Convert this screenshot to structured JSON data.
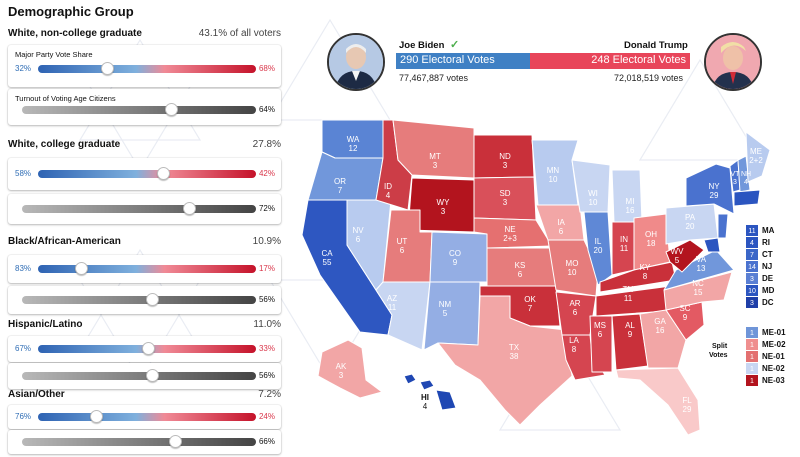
{
  "panel": {
    "title": "Demographic Group",
    "major_party_label": "Major Party Vote Share",
    "turnout_label": "Turnout of Voting Age Citizens",
    "groups": [
      {
        "name": "White, non-college graduate",
        "share": "43.1% of all voters",
        "dem": "32%",
        "rep": "68%",
        "dem_pct": 32,
        "turnout": "64%",
        "turnout_pct": 64
      },
      {
        "name": "White, college graduate",
        "share": "27.8%",
        "dem": "58%",
        "rep": "42%",
        "dem_pct": 58,
        "turnout": "72%",
        "turnout_pct": 72
      },
      {
        "name": "Black/African-American",
        "share": "10.9%",
        "dem": "83%",
        "rep": "17%",
        "dem_pct": 83,
        "turnout": "56%",
        "turnout_pct": 56
      },
      {
        "name": "Hispanic/Latino",
        "share": "11.0%",
        "dem": "67%",
        "rep": "33%",
        "dem_pct": 67,
        "turnout": "56%",
        "turnout_pct": 56
      },
      {
        "name": "Asian/Other",
        "share": "7.2%",
        "dem": "76%",
        "rep": "24%",
        "dem_pct": 76,
        "turnout": "66%",
        "turnout_pct": 66
      }
    ]
  },
  "header": {
    "dem": {
      "name": "Joe Biden",
      "ev_label": "290 Electoral Votes",
      "popular": "77,467,887 votes",
      "ev": 290,
      "color": "#3f80c4"
    },
    "rep": {
      "name": "Donald Trump",
      "ev_label": "248 Electoral Votes",
      "popular": "72,018,519 votes",
      "ev": 248,
      "color": "#e8455a"
    }
  },
  "states": [
    {
      "abbr": "WA",
      "ev": "12"
    },
    {
      "abbr": "OR",
      "ev": "7"
    },
    {
      "abbr": "CA",
      "ev": "55"
    },
    {
      "abbr": "NV",
      "ev": "6"
    },
    {
      "abbr": "ID",
      "ev": "4"
    },
    {
      "abbr": "MT",
      "ev": "3"
    },
    {
      "abbr": "WY",
      "ev": "3"
    },
    {
      "abbr": "UT",
      "ev": "6"
    },
    {
      "abbr": "AZ",
      "ev": "11"
    },
    {
      "abbr": "CO",
      "ev": "9"
    },
    {
      "abbr": "NM",
      "ev": "5"
    },
    {
      "abbr": "ND",
      "ev": "3"
    },
    {
      "abbr": "SD",
      "ev": "3"
    },
    {
      "abbr": "NE",
      "ev": "2+3"
    },
    {
      "abbr": "KS",
      "ev": "6"
    },
    {
      "abbr": "OK",
      "ev": "7"
    },
    {
      "abbr": "TX",
      "ev": "38"
    },
    {
      "abbr": "MN",
      "ev": "10"
    },
    {
      "abbr": "IA",
      "ev": "6"
    },
    {
      "abbr": "MO",
      "ev": "10"
    },
    {
      "abbr": "AR",
      "ev": "6"
    },
    {
      "abbr": "LA",
      "ev": "8"
    },
    {
      "abbr": "WI",
      "ev": "10"
    },
    {
      "abbr": "IL",
      "ev": "20"
    },
    {
      "abbr": "MI",
      "ev": "16"
    },
    {
      "abbr": "IN",
      "ev": "11"
    },
    {
      "abbr": "OH",
      "ev": "18"
    },
    {
      "abbr": "KY",
      "ev": "8"
    },
    {
      "abbr": "TN",
      "ev": "11"
    },
    {
      "abbr": "MS",
      "ev": "6"
    },
    {
      "abbr": "AL",
      "ev": "9"
    },
    {
      "abbr": "GA",
      "ev": "16"
    },
    {
      "abbr": "FL",
      "ev": "29"
    },
    {
      "abbr": "SC",
      "ev": "9"
    },
    {
      "abbr": "NC",
      "ev": "15"
    },
    {
      "abbr": "VA",
      "ev": "13"
    },
    {
      "abbr": "WV",
      "ev": "5"
    },
    {
      "abbr": "PA",
      "ev": "20"
    },
    {
      "abbr": "NY",
      "ev": "29"
    },
    {
      "abbr": "VT",
      "ev": "3"
    },
    {
      "abbr": "NH",
      "ev": "4"
    },
    {
      "abbr": "ME",
      "ev": "2+2"
    },
    {
      "abbr": "AK",
      "ev": "3"
    },
    {
      "abbr": "HI",
      "ev": "4"
    }
  ],
  "small_states": [
    {
      "ev": "11",
      "abbr": "MA",
      "color": "#2b55c0"
    },
    {
      "ev": "4",
      "abbr": "RI",
      "color": "#2b55c0"
    },
    {
      "ev": "7",
      "abbr": "CT",
      "color": "#3a66c8"
    },
    {
      "ev": "14",
      "abbr": "NJ",
      "color": "#4a72cf"
    },
    {
      "ev": "3",
      "abbr": "DE",
      "color": "#5a7fd3"
    },
    {
      "ev": "10",
      "abbr": "MD",
      "color": "#2b55c0"
    },
    {
      "ev": "3",
      "abbr": "DC",
      "color": "#1f3fa8"
    }
  ],
  "split_votes": {
    "label_line1": "Split",
    "label_line2": "Votes",
    "items": [
      {
        "ev": "1",
        "abbr": "ME-01",
        "color": "#6f95d8"
      },
      {
        "ev": "1",
        "abbr": "ME-02",
        "color": "#ef8f8f"
      },
      {
        "ev": "1",
        "abbr": "NE-01",
        "color": "#e37070"
      },
      {
        "ev": "1",
        "abbr": "NE-02",
        "color": "#c8d6f2"
      },
      {
        "ev": "1",
        "abbr": "NE-03",
        "color": "#b3141e"
      }
    ]
  }
}
